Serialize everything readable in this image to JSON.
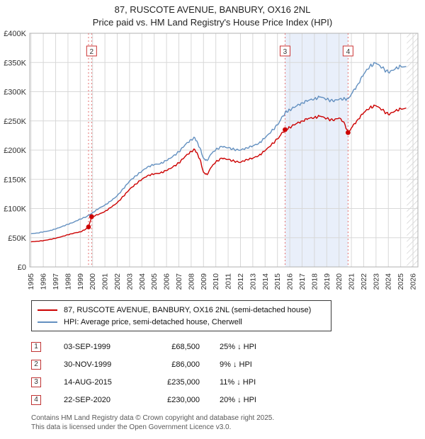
{
  "title": {
    "line1": "87, RUSCOTE AVENUE, BANBURY, OX16 2NL",
    "line2": "Price paid vs. HM Land Registry's House Price Index (HPI)"
  },
  "legend": {
    "series1": "87, RUSCOTE AVENUE, BANBURY, OX16 2NL (semi-detached house)",
    "series2": "HPI: Average price, semi-detached house, Cherwell"
  },
  "sales": [
    {
      "num": "1",
      "date": "03-SEP-1999",
      "price": "£68,500",
      "hpi": "25% ↓ HPI"
    },
    {
      "num": "2",
      "date": "30-NOV-1999",
      "price": "£86,000",
      "hpi": "9% ↓ HPI"
    },
    {
      "num": "3",
      "date": "14-AUG-2015",
      "price": "£235,000",
      "hpi": "11% ↓ HPI"
    },
    {
      "num": "4",
      "date": "22-SEP-2020",
      "price": "£230,000",
      "hpi": "20% ↓ HPI"
    }
  ],
  "footer": {
    "line1": "Contains HM Land Registry data © Crown copyright and database right 2025.",
    "line2": "This data is licensed under the Open Government Licence v3.0."
  },
  "chart_data": {
    "type": "line",
    "title": "87, RUSCOTE AVENUE, BANBURY, OX16 2NL — Price paid vs. HPI",
    "values_unit": "GBP_thousands",
    "xlim": [
      1994.9,
      2026.4
    ],
    "ylim": [
      0,
      400000
    ],
    "ytick_values": [
      0,
      50000,
      100000,
      150000,
      200000,
      250000,
      300000,
      350000,
      400000
    ],
    "ytick_labels": [
      "£0",
      "£50K",
      "£100K",
      "£150K",
      "£200K",
      "£250K",
      "£300K",
      "£350K",
      "£400K"
    ],
    "xtick_years": [
      1995,
      1996,
      1997,
      1998,
      1999,
      2000,
      2001,
      2002,
      2003,
      2004,
      2005,
      2006,
      2007,
      2008,
      2009,
      2010,
      2011,
      2012,
      2013,
      2014,
      2015,
      2016,
      2017,
      2018,
      2019,
      2020,
      2021,
      2022,
      2023,
      2024,
      2025,
      2026
    ],
    "colors": {
      "property": "#cc0000",
      "hpi": "#6390c0",
      "dot": "#cc0000",
      "sale_line": "#e57373",
      "marker_border": "#cc3333",
      "grid": "#d8d8d8",
      "border": "#b0b0b0",
      "shade": "#e9effa",
      "hatch": "#c9c9c9",
      "text": "#333333"
    },
    "series": [
      {
        "id": "hpi",
        "name": "HPI: Average price, semi-detached house, Cherwell",
        "color": "#6390c0",
        "points": [
          [
            1995,
            57
          ],
          [
            1995.5,
            58
          ],
          [
            1996,
            60
          ],
          [
            1996.5,
            62
          ],
          [
            1997,
            65
          ],
          [
            1997.5,
            69
          ],
          [
            1998,
            73
          ],
          [
            1998.5,
            77
          ],
          [
            1999,
            82
          ],
          [
            1999.5,
            86
          ],
          [
            2000,
            93
          ],
          [
            2000.5,
            100
          ],
          [
            2001,
            106
          ],
          [
            2001.5,
            113
          ],
          [
            2002,
            122
          ],
          [
            2002.5,
            134
          ],
          [
            2003,
            147
          ],
          [
            2003.5,
            156
          ],
          [
            2004,
            164
          ],
          [
            2004.5,
            172
          ],
          [
            2005,
            175
          ],
          [
            2005.5,
            177
          ],
          [
            2006,
            182
          ],
          [
            2006.5,
            189
          ],
          [
            2007,
            197
          ],
          [
            2007.5,
            209
          ],
          [
            2008,
            218
          ],
          [
            2008.3,
            221
          ],
          [
            2008.7,
            204
          ],
          [
            2009,
            186
          ],
          [
            2009.3,
            182
          ],
          [
            2009.6,
            193
          ],
          [
            2010,
            201
          ],
          [
            2010.5,
            206
          ],
          [
            2011,
            204
          ],
          [
            2011.5,
            201
          ],
          [
            2012,
            200
          ],
          [
            2012.5,
            204
          ],
          [
            2013,
            207
          ],
          [
            2013.5,
            212
          ],
          [
            2014,
            221
          ],
          [
            2014.5,
            232
          ],
          [
            2015,
            243
          ],
          [
            2015.62,
            264
          ],
          [
            2016,
            269
          ],
          [
            2016.5,
            275
          ],
          [
            2017,
            281
          ],
          [
            2017.5,
            285
          ],
          [
            2018,
            288
          ],
          [
            2018.5,
            291
          ],
          [
            2019,
            287
          ],
          [
            2019.5,
            284
          ],
          [
            2020,
            287
          ],
          [
            2020.73,
            288
          ],
          [
            2021,
            296
          ],
          [
            2021.5,
            312
          ],
          [
            2022,
            330
          ],
          [
            2022.5,
            344
          ],
          [
            2023,
            349
          ],
          [
            2023.5,
            341
          ],
          [
            2024,
            333
          ],
          [
            2024.5,
            338
          ],
          [
            2025,
            344
          ],
          [
            2025.45,
            343
          ]
        ]
      },
      {
        "id": "property",
        "name": "87, RUSCOTE AVENUE, BANBURY, OX16 2NL (semi-detached house)",
        "color": "#cc0000",
        "points": [
          [
            1995,
            43
          ],
          [
            1995.5,
            44
          ],
          [
            1996,
            45
          ],
          [
            1996.5,
            47
          ],
          [
            1997,
            49
          ],
          [
            1997.5,
            52
          ],
          [
            1998,
            55
          ],
          [
            1998.5,
            58
          ],
          [
            1999,
            60
          ],
          [
            1999.4,
            64
          ],
          [
            1999.67,
            68.5
          ],
          [
            1999.92,
            86
          ],
          [
            2000.5,
            90
          ],
          [
            2001,
            95
          ],
          [
            2001.5,
            102
          ],
          [
            2002,
            110
          ],
          [
            2002.5,
            121
          ],
          [
            2003,
            133
          ],
          [
            2003.5,
            142
          ],
          [
            2004,
            150
          ],
          [
            2004.5,
            157
          ],
          [
            2005,
            159
          ],
          [
            2005.5,
            161
          ],
          [
            2006,
            165
          ],
          [
            2006.5,
            171
          ],
          [
            2007,
            178
          ],
          [
            2007.5,
            189
          ],
          [
            2008,
            198
          ],
          [
            2008.3,
            201
          ],
          [
            2008.7,
            185
          ],
          [
            2009,
            162
          ],
          [
            2009.3,
            158
          ],
          [
            2009.6,
            170
          ],
          [
            2010,
            180
          ],
          [
            2010.5,
            186
          ],
          [
            2011,
            184
          ],
          [
            2011.5,
            181
          ],
          [
            2012,
            179
          ],
          [
            2012.5,
            184
          ],
          [
            2013,
            186
          ],
          [
            2013.5,
            191
          ],
          [
            2014,
            199
          ],
          [
            2014.5,
            209
          ],
          [
            2015,
            219
          ],
          [
            2015.62,
            235
          ],
          [
            2016,
            239
          ],
          [
            2016.5,
            245
          ],
          [
            2017,
            250
          ],
          [
            2017.5,
            254
          ],
          [
            2018,
            256
          ],
          [
            2018.5,
            258
          ],
          [
            2019,
            254
          ],
          [
            2019.5,
            251
          ],
          [
            2020,
            255
          ],
          [
            2020.4,
            248
          ],
          [
            2020.73,
            230
          ],
          [
            2021,
            238
          ],
          [
            2021.5,
            252
          ],
          [
            2022,
            264
          ],
          [
            2022.5,
            273
          ],
          [
            2023,
            276
          ],
          [
            2023.5,
            269
          ],
          [
            2024,
            261
          ],
          [
            2024.5,
            266
          ],
          [
            2025,
            271
          ],
          [
            2025.45,
            272
          ]
        ]
      }
    ],
    "sale_points": [
      [
        1999.67,
        68.5
      ],
      [
        1999.92,
        86
      ],
      [
        2015.62,
        235
      ],
      [
        2020.73,
        230
      ]
    ],
    "sale_lines": [
      1999.67,
      1999.92,
      2015.62,
      2020.73
    ],
    "markers": [
      {
        "label": "2",
        "x": 1999.92
      },
      {
        "label": "3",
        "x": 2015.62
      },
      {
        "label": "4",
        "x": 2020.73
      }
    ],
    "shade_region": [
      2015.62,
      2020.73
    ],
    "hatch_region": [
      2025.5,
      2026.4
    ]
  }
}
